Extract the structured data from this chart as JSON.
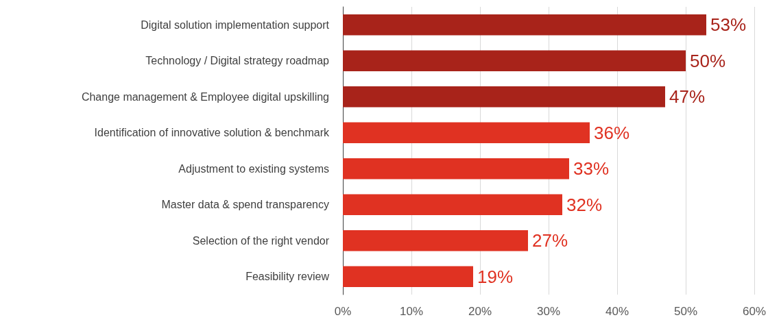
{
  "chart_data": {
    "type": "bar",
    "orientation": "horizontal",
    "categories": [
      "Digital solution implementation support",
      "Technology / Digital strategy roadmap",
      "Change management & Employee digital upskilling",
      "Identification of innovative solution & benchmark",
      "Adjustment to existing systems",
      "Master data & spend transparency",
      "Selection of the right vendor",
      "Feasibility review"
    ],
    "values": [
      53,
      50,
      47,
      36,
      33,
      32,
      27,
      19
    ],
    "colors": [
      "#a8231a",
      "#a8231a",
      "#a8231a",
      "#e03222",
      "#e03222",
      "#e03222",
      "#e03222",
      "#e03222"
    ],
    "value_labels": [
      "53%",
      "50%",
      "47%",
      "36%",
      "33%",
      "32%",
      "27%",
      "19%"
    ],
    "xlim": [
      0,
      60
    ],
    "xticks": [
      {
        "value": 0,
        "label": "0%"
      },
      {
        "value": 10,
        "label": "10%"
      },
      {
        "value": 20,
        "label": "20%"
      },
      {
        "value": 30,
        "label": "30%"
      },
      {
        "value": 40,
        "label": "40%"
      },
      {
        "value": 50,
        "label": "50%"
      },
      {
        "value": 60,
        "label": "60%"
      }
    ],
    "grid": "x"
  }
}
